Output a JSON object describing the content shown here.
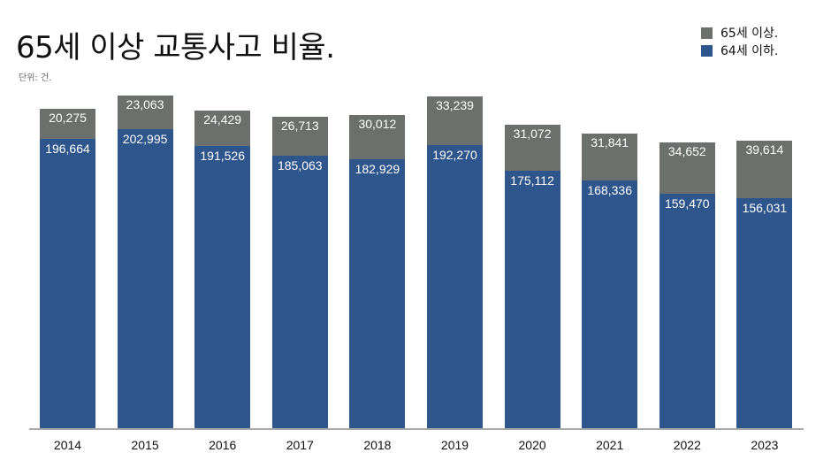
{
  "header": {
    "title": "65세 이상 교통사고 비율.",
    "unit": "단위: 건."
  },
  "legend": [
    {
      "label": "65세 이상.",
      "color": "#6c706d"
    },
    {
      "label": "64세 이하.",
      "color": "#2e568c"
    }
  ],
  "colors": {
    "age65_plus": "#6c706d",
    "age64_under": "#2e568c",
    "axis": "#aaaaaa"
  },
  "chart_data": {
    "type": "bar",
    "stacked": true,
    "title": "65세 이상 교통사고 비율.",
    "subtitle": "단위: 건.",
    "xlabel": "",
    "ylabel": "",
    "categories": [
      "2014",
      "2015",
      "2016",
      "2017",
      "2018",
      "2019",
      "2020",
      "2021",
      "2022",
      "2023"
    ],
    "series": [
      {
        "name": "64세 이하.",
        "color": "#2e568c",
        "values": [
          196664,
          202995,
          191526,
          185063,
          182929,
          192270,
          175112,
          168336,
          159470,
          156031
        ]
      },
      {
        "name": "65세 이상.",
        "color": "#6c706d",
        "values": [
          20275,
          23063,
          24429,
          26713,
          30012,
          33239,
          31072,
          31841,
          34652,
          39614
        ]
      }
    ],
    "value_labels": {
      "64세 이하.": [
        "196,664",
        "202,995",
        "191,526",
        "185,063",
        "182,929",
        "192,270",
        "175,112",
        "168,336",
        "159,470",
        "156,031"
      ],
      "65세 이상.": [
        "20,275",
        "23,063",
        "24,429",
        "26,713",
        "30,012",
        "33,239",
        "31,072",
        "31,841",
        "34,652",
        "39,614"
      ]
    },
    "grid": false,
    "legend_position": "top-right",
    "y_axis_visible": false
  }
}
